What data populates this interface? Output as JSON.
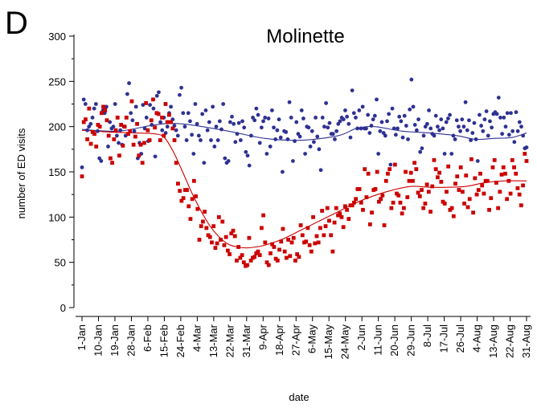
{
  "panel_letter": "D",
  "chart_data": {
    "type": "scatter",
    "title": "Molinette",
    "xlabel": "date",
    "ylabel": "number of ED visits",
    "ylim": [
      0,
      300
    ],
    "yticks": [
      0,
      50,
      100,
      150,
      200,
      250,
      300
    ],
    "x_tick_labels": [
      "1-Jan",
      "10-Jan",
      "19-Jan",
      "28-Jan",
      "6-Feb",
      "15-Feb",
      "24-Feb",
      "4-Mar",
      "13-Mar",
      "22-Mar",
      "31-Mar",
      "9-Apr",
      "18-Apr",
      "27-Apr",
      "6-May",
      "15-May",
      "24-May",
      "2-Jun",
      "11-Jun",
      "20-Jun",
      "29-Jun",
      "8-Jul",
      "17-Jul",
      "26-Jul",
      "4-Aug",
      "13-Aug",
      "22-Aug",
      "31-Aug"
    ],
    "x_tick_days": [
      0,
      9,
      18,
      27,
      36,
      45,
      54,
      63,
      72,
      81,
      90,
      99,
      108,
      117,
      126,
      135,
      144,
      153,
      162,
      171,
      180,
      189,
      198,
      207,
      216,
      225,
      234,
      243
    ],
    "grid": false,
    "legend": "none",
    "series": [
      {
        "color": "#2e3192",
        "marker": "circle",
        "values": [
          155,
          230,
          225,
          196,
          200,
          203,
          210,
          220,
          225,
          195,
          165,
          162,
          218,
          215,
          222,
          178,
          205,
          198,
          200,
          225,
          190,
          182,
          196,
          180,
          200,
          190,
          236,
          248,
          215,
          207,
          195,
          222,
          165,
          182,
          170,
          224,
          198,
          210,
          184,
          224,
          202,
          220,
          167,
          234,
          238,
          205,
          196,
          210,
          193,
          200,
          215,
          222,
          208,
          201,
          196,
          190,
          235,
          243,
          215,
          200,
          185,
          215,
          206,
          191,
          170,
          225,
          203,
          190,
          185,
          214,
          160,
          218,
          196,
          205,
          185,
          222,
          178,
          200,
          185,
          206,
          197,
          225,
          165,
          160,
          162,
          205,
          211,
          203,
          183,
          192,
          204,
          185,
          206,
          199,
          172,
          168,
          157,
          190,
          210,
          207,
          220,
          213,
          182,
          199,
          206,
          210,
          170,
          209,
          178,
          218,
          199,
          186,
          196,
          208,
          188,
          150,
          195,
          194,
          186,
          227,
          210,
          162,
          184,
          205,
          192,
          189,
          218,
          209,
          170,
          200,
          199,
          178,
          195,
          183,
          210,
          189,
          175,
          152,
          210,
          200,
          226,
          199,
          204,
          192,
          192,
          186,
          195,
          203,
          206,
          210,
          208,
          218,
          211,
          203,
          188,
          240,
          215,
          210,
          198,
          218,
          198,
          222,
          198,
          198,
          213,
          193,
          201,
          208,
          212,
          230,
          170,
          195,
          205,
          193,
          190,
          206,
          214,
          158,
          220,
          198,
          191,
          198,
          211,
          206,
          188,
          212,
          201,
          186,
          219,
          252,
          222,
          202,
          196,
          208,
          172,
          176,
          190,
          200,
          203,
          218,
          198,
          192,
          190,
          212,
          200,
          196,
          208,
          198,
          170,
          205,
          209,
          213,
          170,
          190,
          186,
          207,
          200,
          195,
          208,
          200,
          227,
          196,
          207,
          185,
          193,
          204,
          186,
          162,
          213,
          201,
          195,
          208,
          217,
          190,
          206,
          199,
          214,
          216,
          214,
          232,
          210,
          192,
          210,
          200,
          215,
          191,
          215,
          195,
          183,
          216,
          195,
          205,
          200,
          190,
          176,
          177
        ]
      },
      {
        "color": "#cc0000",
        "marker": "square",
        "values": [
          145,
          205,
          208,
          186,
          220,
          181,
          194,
          192,
          178,
          202,
          200,
          215,
          222,
          218,
          207,
          190,
          165,
          160,
          186,
          196,
          210,
          168,
          202,
          179,
          200,
          210,
          192,
          195,
          228,
          180,
          189,
          203,
          168,
          180,
          160,
          182,
          226,
          196,
          185,
          207,
          230,
          199,
          215,
          214,
          185,
          210,
          190,
          225,
          205,
          213,
          205,
          198,
          185,
          160,
          137,
          129,
          118,
          121,
          130,
          130,
          112,
          98,
          120,
          140,
          123,
          109,
          75,
          90,
          95,
          106,
          88,
          80,
          78,
          72,
          90,
          66,
          71,
          100,
          75,
          95,
          69,
          78,
          63,
          59,
          82,
          85,
          79,
          52,
          67,
          55,
          58,
          50,
          46,
          47,
          77,
          52,
          55,
          56,
          60,
          62,
          58,
          88,
          102,
          72,
          50,
          47,
          60,
          70,
          67,
          54,
          52,
          64,
          73,
          87,
          62,
          55,
          75,
          57,
          72,
          77,
          52,
          59,
          56,
          91,
          80,
          72,
          73,
          88,
          69,
          62,
          100,
          71,
          79,
          72,
          88,
          107,
          80,
          90,
          110,
          96,
          80,
          62,
          94,
          110,
          102,
          104,
          100,
          89,
          112,
          108,
          98,
          113,
          113,
          116,
          120,
          131,
          131,
          116,
          108,
          153,
          122,
          148,
          92,
          105,
          130,
          131,
          150,
          117,
          120,
          124,
          91,
          140,
          148,
          153,
          110,
          116,
          158,
          126,
          124,
          116,
          104,
          110,
          150,
          122,
          140,
          149,
          140,
          160,
          153,
          127,
          123,
          130,
          110,
          115,
          136,
          128,
          106,
          134,
          163,
          153,
          144,
          149,
          139,
          117,
          115,
          128,
          156,
          108,
          110,
          101,
          137,
          145,
          130,
          155,
          128,
          115,
          146,
          111,
          120,
          164,
          105,
          143,
          125,
          130,
          148,
          135,
          126,
          140,
          140,
          108,
          121,
          155,
          163,
          138,
          110,
          128,
          147,
          155,
          148,
          120,
          140,
          126,
          163,
          155,
          148,
          132,
          125,
          113,
          135,
          170,
          162
        ]
      }
    ],
    "trend_lines": [
      {
        "color": "#2e3192",
        "x": [
          0,
          20,
          40,
          55,
          80,
          100,
          120,
          140,
          150,
          160,
          175,
          190,
          205,
          215,
          225,
          235,
          243
        ],
        "y": [
          197,
          195,
          202,
          203,
          195,
          187,
          185,
          190,
          198,
          200,
          195,
          193,
          190,
          186,
          187,
          188,
          193
        ]
      },
      {
        "color": "#cc0000",
        "x": [
          0,
          15,
          30,
          40,
          45,
          50,
          55,
          60,
          65,
          70,
          75,
          80,
          85,
          90,
          95,
          100,
          110,
          120,
          130,
          140,
          150,
          160,
          170,
          180,
          190,
          200,
          210,
          220,
          230,
          243
        ],
        "y": [
          196,
          194,
          193,
          192,
          188,
          172,
          150,
          127,
          107,
          90,
          78,
          70,
          67,
          66,
          67,
          69,
          76,
          86,
          96,
          106,
          116,
          124,
          130,
          134,
          133,
          133,
          134,
          138,
          140,
          140
        ]
      }
    ]
  }
}
